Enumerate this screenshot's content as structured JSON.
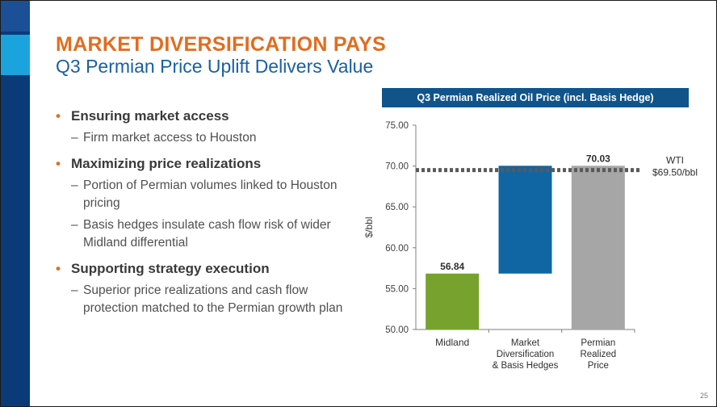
{
  "slide": {
    "title": "MARKET DIVERSIFICATION PAYS",
    "subtitle": "Q3 Permian Price Uplift Delivers Value",
    "page_number": "25",
    "bullets": [
      {
        "text": "Ensuring market access",
        "sub": [
          "Firm market access to Houston"
        ]
      },
      {
        "text": "Maximizing price realizations",
        "sub": [
          "Portion of Permian volumes linked to Houston pricing",
          "Basis hedges insulate cash flow risk of wider Midland differential"
        ]
      },
      {
        "text": "Supporting strategy execution",
        "sub": [
          "Superior price realizations and cash flow protection matched to the Permian growth plan"
        ]
      }
    ],
    "colors": {
      "title": "#e36c1e",
      "subtitle": "#1a5fa5",
      "header": "#10548a"
    }
  },
  "chart_data": {
    "type": "bar",
    "subtype": "waterfall",
    "title": "Q3 Permian Realized Oil Price (incl. Basis Hedge)",
    "ylabel": "$/bbl",
    "ylim": [
      50,
      75
    ],
    "yticks": [
      "50.00",
      "55.00",
      "60.00",
      "65.00",
      "70.00",
      "75.00"
    ],
    "categories": [
      {
        "lines": [
          "Midland"
        ],
        "bottom": 50.0,
        "top": 56.84,
        "label": "56.84",
        "color": "#77a22e"
      },
      {
        "lines": [
          "Market",
          "Diversification",
          "& Basis Hedges"
        ],
        "bottom": 56.84,
        "top": 70.03,
        "label": "",
        "color": "#1066a3"
      },
      {
        "lines": [
          "Permian",
          "Realized",
          "Price"
        ],
        "bottom": 50.0,
        "top": 70.03,
        "label": "70.03",
        "color": "#a6a6a6"
      }
    ],
    "reference_line": {
      "value": 69.5,
      "label_lines": [
        "WTI",
        "$69.50/bbl"
      ],
      "style": "dotted"
    },
    "grid": false
  }
}
